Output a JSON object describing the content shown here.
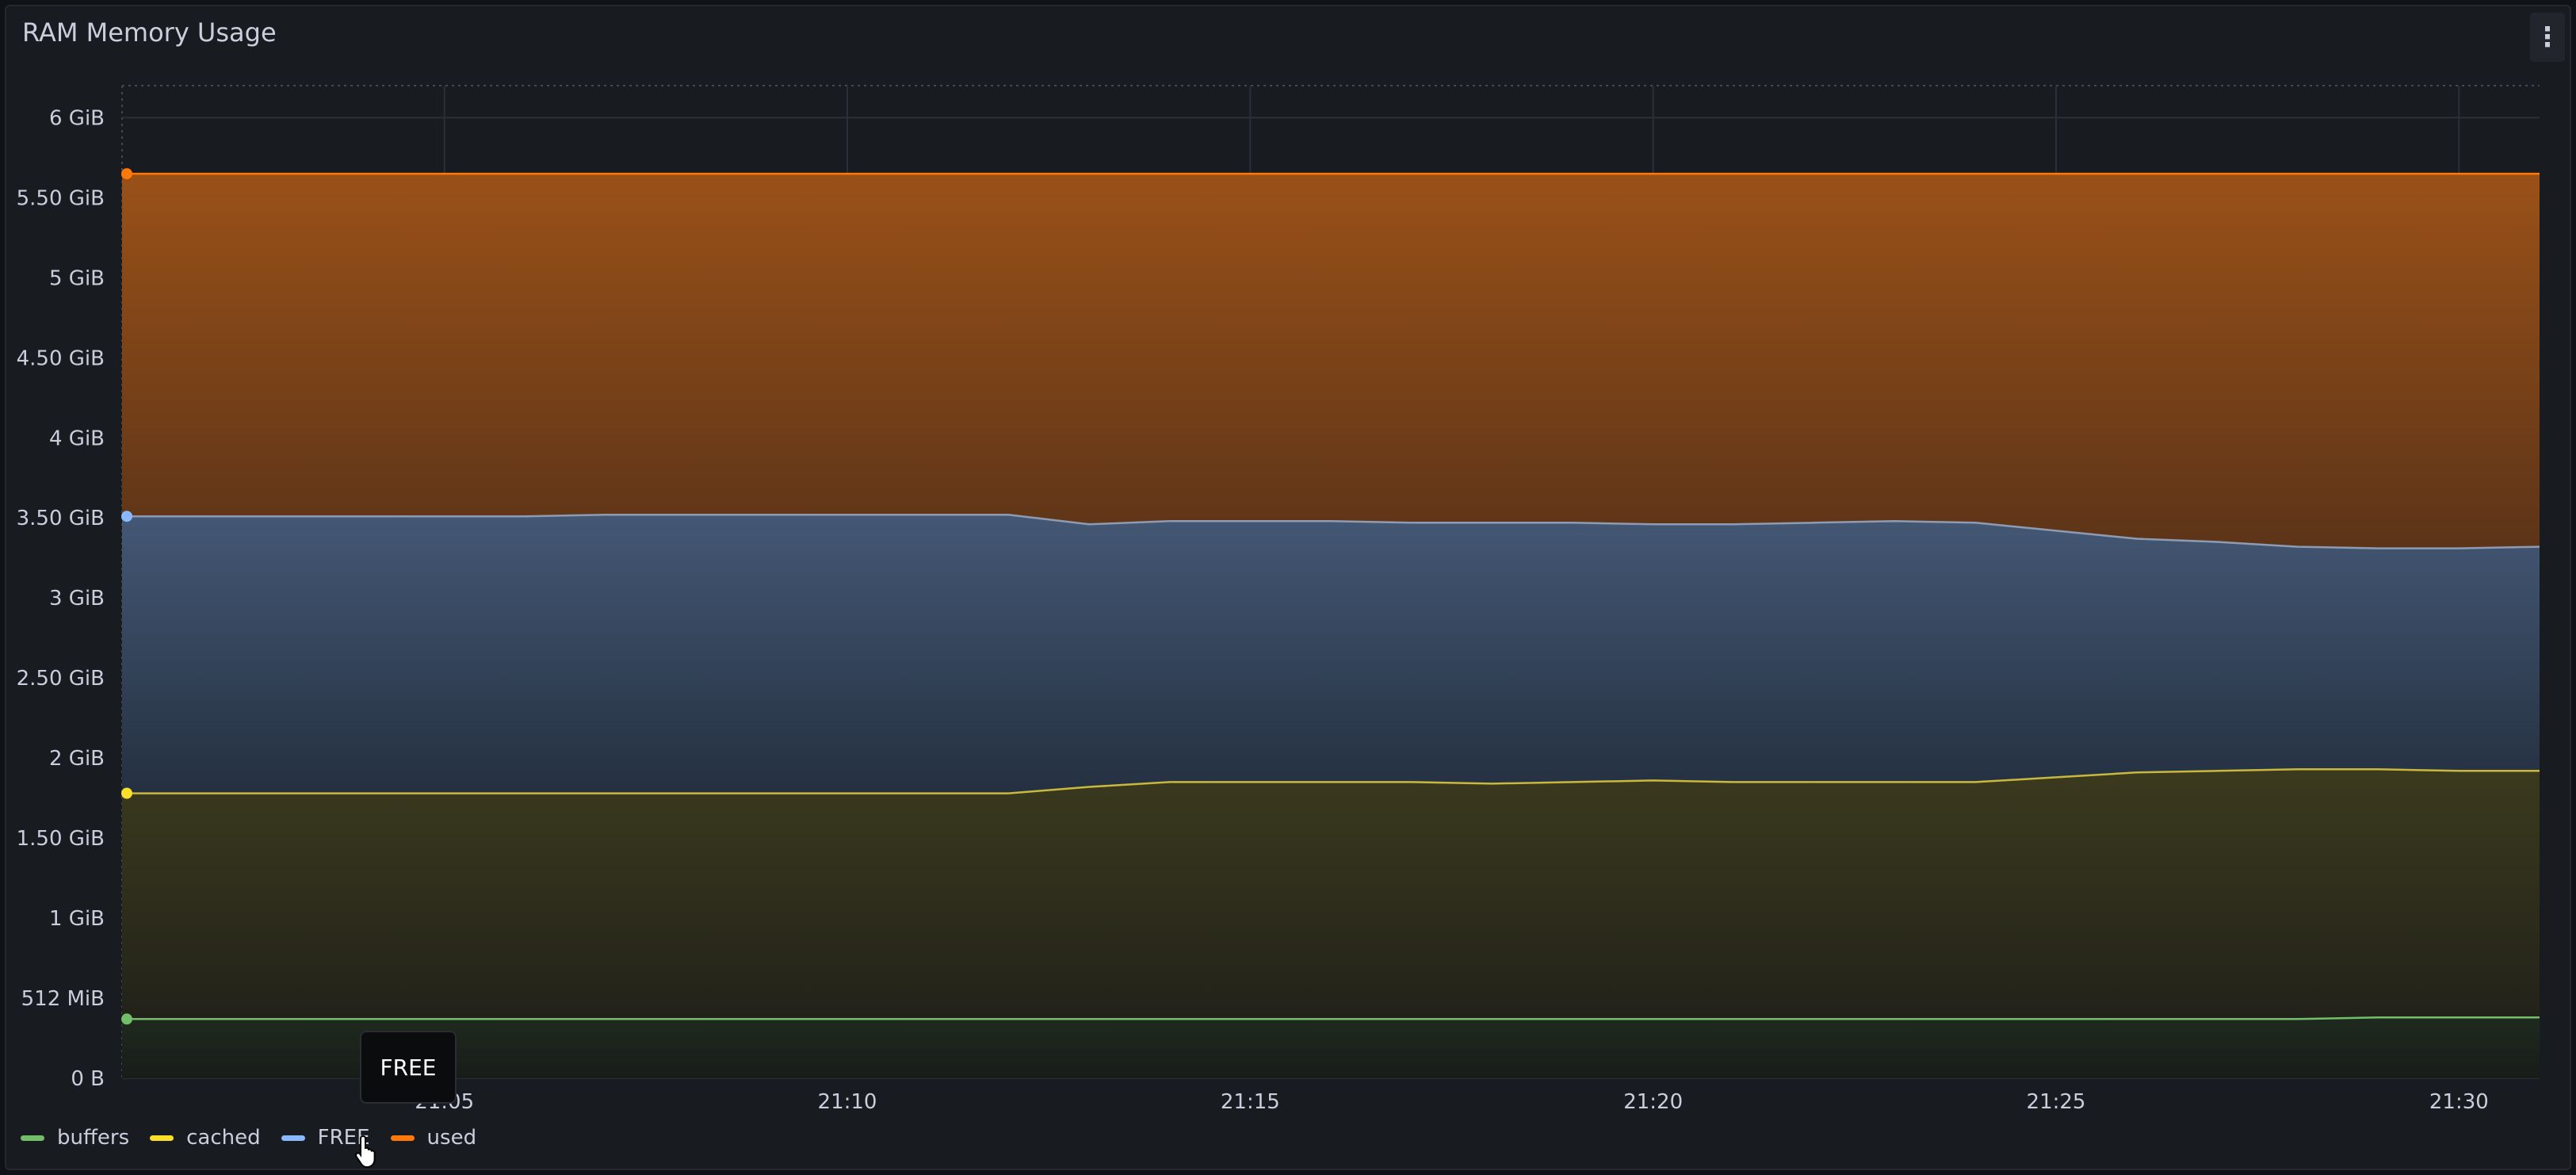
{
  "panel": {
    "title": "RAM Memory Usage",
    "menu_icon": "kebab-menu-icon"
  },
  "tooltip": {
    "text": "FREE"
  },
  "legend": [
    {
      "label": "buffers",
      "color": "#73bf69"
    },
    {
      "label": "cached",
      "color": "#fade2a"
    },
    {
      "label": "FREE",
      "color": "#8ab8ff"
    },
    {
      "label": "used",
      "color": "#ff780a"
    }
  ],
  "chart_data": {
    "type": "area",
    "stacked": true,
    "grid": true,
    "legend_position": "bottom-left",
    "y_unit": "GiB",
    "ylim": [
      0,
      6.2
    ],
    "y_ticks": [
      {
        "value": 0,
        "label": "0 B"
      },
      {
        "value": 0.5,
        "label": "512 MiB"
      },
      {
        "value": 1,
        "label": "1 GiB"
      },
      {
        "value": 1.5,
        "label": "1.50 GiB"
      },
      {
        "value": 2,
        "label": "2 GiB"
      },
      {
        "value": 2.5,
        "label": "2.50 GiB"
      },
      {
        "value": 3,
        "label": "3 GiB"
      },
      {
        "value": 3.5,
        "label": "3.50 GiB"
      },
      {
        "value": 4,
        "label": "4 GiB"
      },
      {
        "value": 4.5,
        "label": "4.50 GiB"
      },
      {
        "value": 5,
        "label": "5 GiB"
      },
      {
        "value": 5.5,
        "label": "5.50 GiB"
      },
      {
        "value": 6,
        "label": "6 GiB"
      }
    ],
    "xlim": [
      "21:01",
      "21:31"
    ],
    "x_ticks": [
      "21:05",
      "21:10",
      "21:15",
      "21:20",
      "21:25",
      "21:30"
    ],
    "x": [
      "21:01",
      "21:02",
      "21:03",
      "21:04",
      "21:05",
      "21:06",
      "21:07",
      "21:08",
      "21:09",
      "21:10",
      "21:11",
      "21:12",
      "21:13",
      "21:14",
      "21:15",
      "21:16",
      "21:17",
      "21:18",
      "21:19",
      "21:20",
      "21:21",
      "21:22",
      "21:23",
      "21:24",
      "21:25",
      "21:26",
      "21:27",
      "21:28",
      "21:29",
      "21:30",
      "21:31"
    ],
    "series": [
      {
        "name": "buffers",
        "color": "#73bf69",
        "values": [
          0.37,
          0.37,
          0.37,
          0.37,
          0.37,
          0.37,
          0.37,
          0.37,
          0.37,
          0.37,
          0.37,
          0.37,
          0.37,
          0.37,
          0.37,
          0.37,
          0.37,
          0.37,
          0.37,
          0.37,
          0.37,
          0.37,
          0.37,
          0.37,
          0.37,
          0.37,
          0.37,
          0.37,
          0.38,
          0.38,
          0.38
        ]
      },
      {
        "name": "cached",
        "color": "#fade2a",
        "values": [
          1.78,
          1.78,
          1.78,
          1.78,
          1.78,
          1.78,
          1.78,
          1.78,
          1.78,
          1.78,
          1.78,
          1.78,
          1.82,
          1.85,
          1.85,
          1.85,
          1.85,
          1.84,
          1.85,
          1.86,
          1.85,
          1.85,
          1.85,
          1.85,
          1.88,
          1.91,
          1.92,
          1.93,
          1.93,
          1.92,
          1.92
        ]
      },
      {
        "name": "FREE",
        "color": "#8ab8ff",
        "values": [
          3.51,
          3.51,
          3.51,
          3.51,
          3.51,
          3.51,
          3.52,
          3.52,
          3.52,
          3.52,
          3.52,
          3.52,
          3.46,
          3.48,
          3.48,
          3.48,
          3.47,
          3.47,
          3.47,
          3.46,
          3.46,
          3.47,
          3.48,
          3.47,
          3.42,
          3.37,
          3.35,
          3.32,
          3.31,
          3.31,
          3.32
        ]
      },
      {
        "name": "used",
        "color": "#ff780a",
        "values": [
          5.65,
          5.65,
          5.65,
          5.65,
          5.65,
          5.65,
          5.65,
          5.65,
          5.65,
          5.65,
          5.65,
          5.65,
          5.65,
          5.65,
          5.65,
          5.65,
          5.65,
          5.65,
          5.65,
          5.65,
          5.65,
          5.65,
          5.65,
          5.65,
          5.65,
          5.65,
          5.65,
          5.65,
          5.65,
          5.65,
          5.65
        ]
      }
    ]
  }
}
